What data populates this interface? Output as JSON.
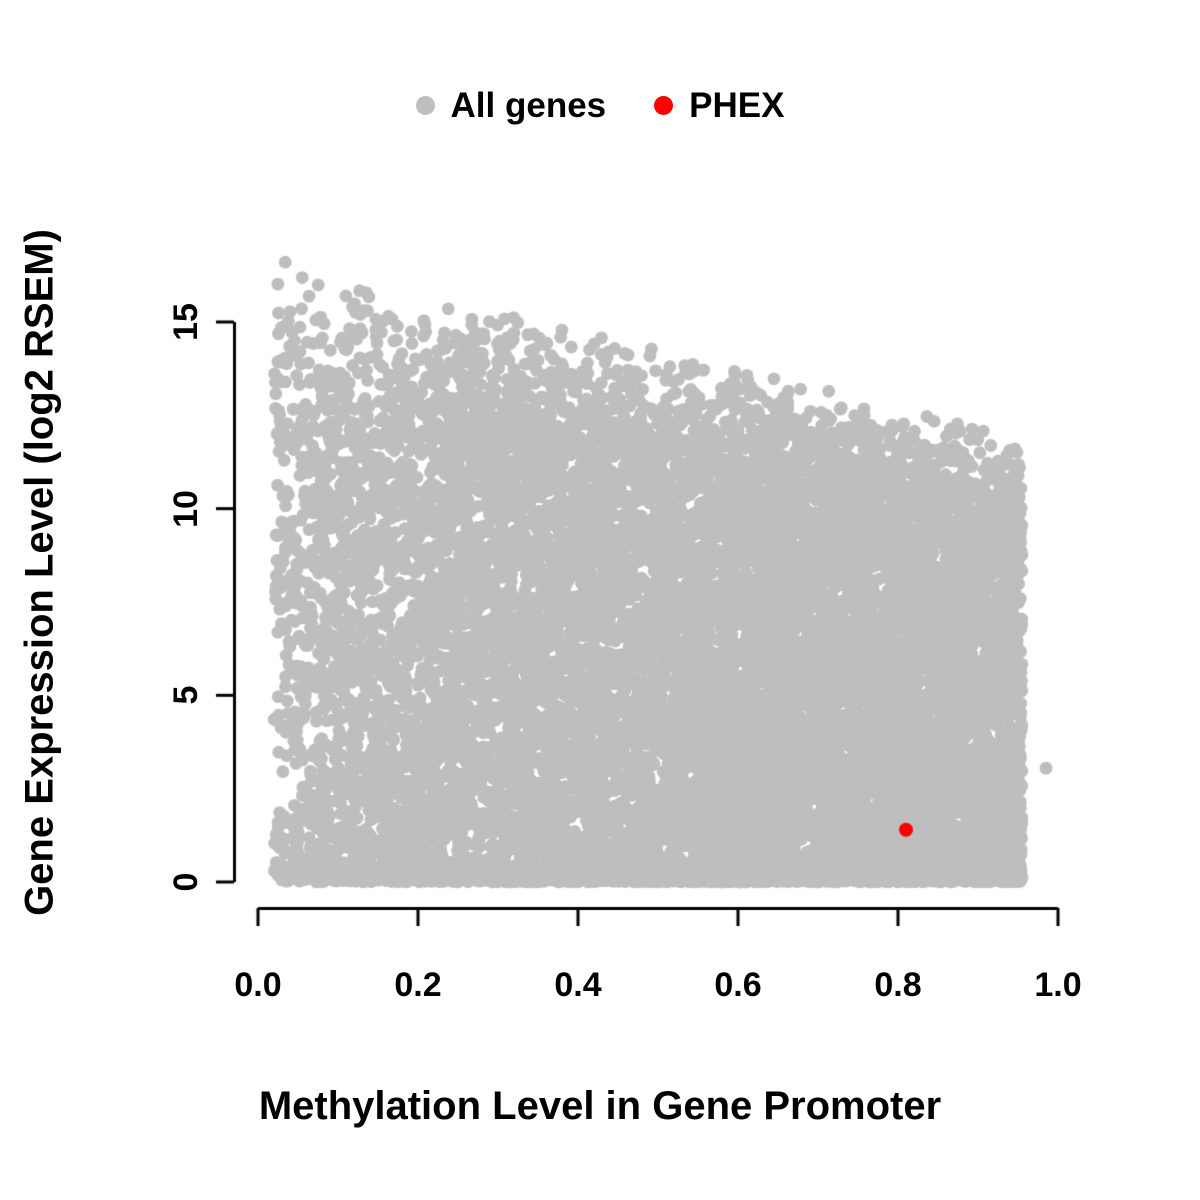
{
  "figure": {
    "background": "#ffffff",
    "text_color": "#000000"
  },
  "chart_data": {
    "type": "scatter",
    "title": "",
    "xlabel": "Methylation Level in Gene Promoter",
    "ylabel": "Gene Expression Level (log2 RSEM)",
    "xlim": [
      0.0,
      1.0
    ],
    "ylim": [
      0,
      17
    ],
    "x_ticks": [
      0.0,
      0.2,
      0.4,
      0.6,
      0.8,
      1.0
    ],
    "x_tick_labels": [
      "0.0",
      "0.2",
      "0.4",
      "0.6",
      "0.8",
      "1.0"
    ],
    "y_ticks": [
      0,
      5,
      10,
      15
    ],
    "y_tick_labels": [
      "0",
      "5",
      "10",
      "15"
    ],
    "grid": false,
    "legend_position": "top-center",
    "axis_color": "#000000",
    "series": [
      {
        "name": "All genes",
        "color": "#bebebe",
        "marker": "filled-circle",
        "kind": "dense-cloud",
        "description": "Thousands of genes forming a solid grey cloud; expression spans 0 to ~16.8 log2 RSEM at low promoter methylation and the upper envelope declines to ~12 at methylation ~0.95; heavy mass near expression 0 across all methylation levels.",
        "generator": {
          "seed": 42,
          "n": 15000,
          "x_min": 0.02,
          "x_max": 0.955,
          "x_exponent": 0.8,
          "env_intercept": 17.0,
          "env_slope": -5.2,
          "env_noise_min": 0.8,
          "y_exponent": 1.1,
          "baseline_fraction": 0.15,
          "baseline_max_y": 0.4
        },
        "extra_points": [
          [
            0.985,
            3.05
          ]
        ]
      },
      {
        "name": "PHEX",
        "color": "#ff0000",
        "marker": "filled-circle",
        "points": [
          [
            0.81,
            1.4
          ]
        ]
      }
    ]
  }
}
